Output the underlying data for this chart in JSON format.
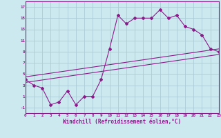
{
  "title": "",
  "xlabel": "Windchill (Refroidissement éolien,°C)",
  "ylabel": "",
  "bg_color": "#cce9ef",
  "grid_color": "#aaccd4",
  "line_color": "#8b1a8b",
  "x_min": 0,
  "x_max": 23,
  "y_min": -2,
  "y_max": 18,
  "yticks": [
    -1,
    1,
    3,
    5,
    7,
    9,
    11,
    13,
    15,
    17
  ],
  "xticks": [
    0,
    1,
    2,
    3,
    4,
    5,
    6,
    7,
    8,
    9,
    10,
    11,
    12,
    13,
    14,
    15,
    16,
    17,
    18,
    19,
    20,
    21,
    22,
    23
  ],
  "series1_x": [
    0,
    1,
    2,
    3,
    4,
    5,
    6,
    7,
    8,
    9,
    10,
    11,
    12,
    13,
    14,
    15,
    16,
    17,
    18,
    19,
    20,
    21,
    22,
    23
  ],
  "series1_y": [
    4,
    3,
    2.5,
    -0.5,
    0,
    2,
    -0.5,
    1,
    1,
    4,
    9.5,
    15.5,
    14,
    15,
    15,
    15,
    16.5,
    15,
    15.5,
    13.5,
    13,
    12,
    9.5,
    9
  ],
  "series2_x": [
    0,
    23
  ],
  "series2_y": [
    3.5,
    8.5
  ],
  "series3_x": [
    0,
    23
  ],
  "series3_y": [
    4.5,
    9.5
  ]
}
